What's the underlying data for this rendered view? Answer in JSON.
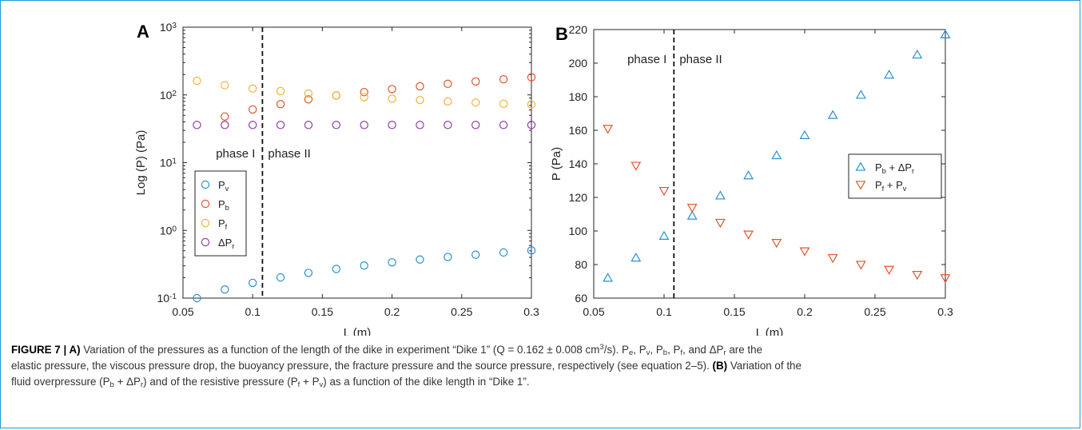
{
  "colors": {
    "frame": "#1e9ad6",
    "p_v": "#2a8fd0",
    "p_b": "#e0552b",
    "p_f": "#f0b33c",
    "dp_r": "#8e3fa3",
    "fluid": "#2a8fd0",
    "resistive": "#e0552b"
  },
  "chart_data": [
    {
      "type": "scatter",
      "panel_label": "A",
      "xlabel": "L (m)",
      "ylabel": "Log (P) (Pa)",
      "yscale": "log",
      "xlim": [
        0.05,
        0.3
      ],
      "ylim": [
        0.1,
        1000
      ],
      "xticks": [
        "0.05",
        "0.1",
        "0.15",
        "0.2",
        "0.25",
        "0.3"
      ],
      "yticks": [
        {
          "base": "10",
          "exp": "-1"
        },
        {
          "base": "10",
          "exp": "0"
        },
        {
          "base": "10",
          "exp": "1"
        },
        {
          "base": "10",
          "exp": "2"
        },
        {
          "base": "10",
          "exp": "3"
        }
      ],
      "phase_boundary": 0.107,
      "phase_labels": [
        "phase I",
        "phase II"
      ],
      "x": [
        0.06,
        0.08,
        0.1,
        0.12,
        0.14,
        0.16,
        0.18,
        0.2,
        0.22,
        0.24,
        0.26,
        0.28,
        0.3
      ],
      "series": [
        {
          "key": "p_v",
          "name": "P",
          "sub": "v",
          "marker": "circle",
          "values": [
            0.1,
            0.134,
            0.168,
            0.202,
            0.236,
            0.27,
            0.303,
            0.337,
            0.371,
            0.405,
            0.438,
            0.472,
            0.506
          ]
        },
        {
          "key": "p_b",
          "name": "P",
          "sub": "b",
          "marker": "circle",
          "x": [
            0.08,
            0.1,
            0.12,
            0.14,
            0.16,
            0.18,
            0.2,
            0.22,
            0.24,
            0.26,
            0.28,
            0.3
          ],
          "values": [
            48,
            61,
            73,
            86,
            98,
            110,
            122,
            134,
            146,
            158,
            170,
            182
          ]
        },
        {
          "key": "p_f",
          "name": "P",
          "sub": "f",
          "marker": "circle",
          "values": [
            161,
            139,
            124,
            114,
            105,
            98,
            93,
            88,
            84,
            80,
            77,
            74,
            72
          ]
        },
        {
          "key": "dp_r",
          "name": "ΔP",
          "sub": "r",
          "marker": "circle",
          "values": [
            36,
            36,
            36,
            36,
            36,
            36,
            36,
            36,
            36,
            36,
            36,
            36,
            36
          ]
        }
      ]
    },
    {
      "type": "scatter",
      "panel_label": "B",
      "xlabel": "L (m)",
      "ylabel": "P (Pa)",
      "xlim": [
        0.05,
        0.3
      ],
      "ylim": [
        60,
        220
      ],
      "xticks": [
        "0.05",
        "0.1",
        "0.15",
        "0.2",
        "0.25",
        "0.3"
      ],
      "yticks": [
        "60",
        "80",
        "100",
        "120",
        "140",
        "160",
        "180",
        "200",
        "220"
      ],
      "phase_boundary": 0.107,
      "phase_labels": [
        "phase I",
        "phase II"
      ],
      "x": [
        0.06,
        0.08,
        0.1,
        0.12,
        0.14,
        0.16,
        0.18,
        0.2,
        0.22,
        0.24,
        0.26,
        0.28,
        0.3
      ],
      "series": [
        {
          "key": "fluid",
          "legend": [
            {
              "t": "P"
            },
            {
              "t": "b",
              "sub": true
            },
            {
              "t": " + ΔP"
            },
            {
              "t": "r",
              "sub": true
            }
          ],
          "marker": "triangle-up",
          "values": [
            72,
            84,
            97,
            109,
            121,
            133,
            145,
            157,
            169,
            181,
            193,
            205,
            217
          ]
        },
        {
          "key": "resistive",
          "legend": [
            {
              "t": "P"
            },
            {
              "t": "f",
              "sub": true
            },
            {
              "t": " + P"
            },
            {
              "t": "v",
              "sub": true
            }
          ],
          "marker": "triangle-down",
          "values": [
            161,
            139,
            124,
            114,
            105,
            98,
            93,
            88,
            84,
            80,
            77,
            74,
            72
          ]
        }
      ]
    }
  ],
  "caption": {
    "lines": [
      [
        {
          "t": "FIGURE 7 | A)",
          "b": true
        },
        {
          "t": " Variation of the pressures as a function of the length of the dike in experiment “Dike 1” (Q = 0.162 ± 0.008 cm"
        },
        {
          "t": "3",
          "sup": true
        },
        {
          "t": "/s). P"
        },
        {
          "t": "e",
          "sub": true
        },
        {
          "t": ", P"
        },
        {
          "t": "v",
          "sub": true
        },
        {
          "t": ", P"
        },
        {
          "t": "b",
          "sub": true
        },
        {
          "t": ", P"
        },
        {
          "t": "f",
          "sub": true
        },
        {
          "t": ", and ΔP"
        },
        {
          "t": "r",
          "sub": true
        },
        {
          "t": " are the"
        }
      ],
      [
        {
          "t": "elastic pressure, the viscous pressure drop, the buoyancy pressure, the fracture pressure and the source pressure, respectively (see equation 2–5). "
        },
        {
          "t": "(B)",
          "b": true
        },
        {
          "t": " Variation of the"
        }
      ],
      [
        {
          "t": "fluid overpressure (P"
        },
        {
          "t": "b",
          "sub": true
        },
        {
          "t": " + ΔP"
        },
        {
          "t": "r",
          "sub": true
        },
        {
          "t": ") and of the resistive pressure (P"
        },
        {
          "t": "f",
          "sub": true
        },
        {
          "t": " + P"
        },
        {
          "t": "v",
          "sub": true
        },
        {
          "t": ") as a function of the dike length in “Dike 1”."
        }
      ]
    ]
  }
}
